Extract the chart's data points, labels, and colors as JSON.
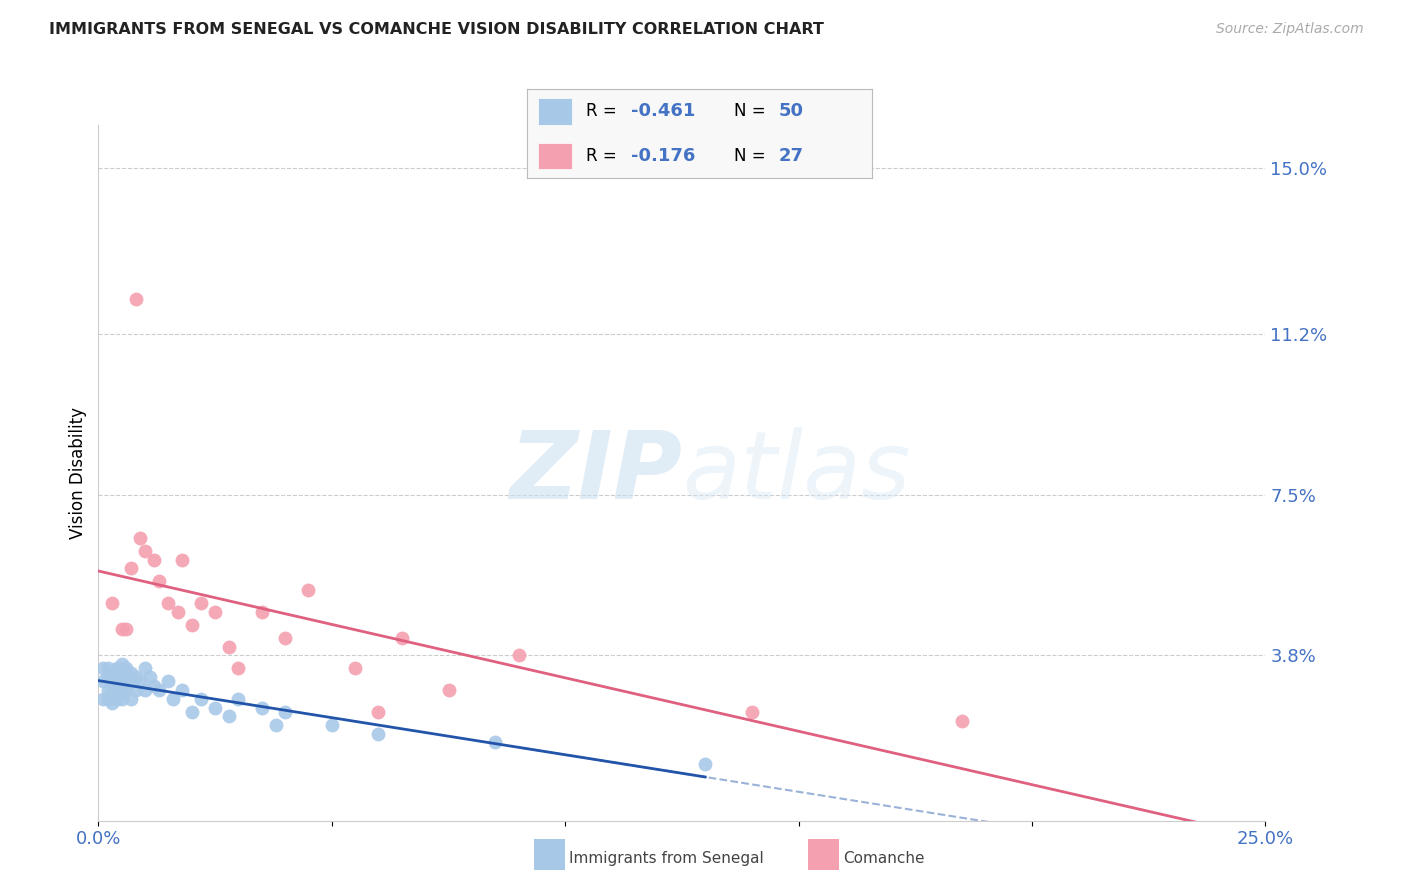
{
  "title": "IMMIGRANTS FROM SENEGAL VS COMANCHE VISION DISABILITY CORRELATION CHART",
  "source": "Source: ZipAtlas.com",
  "xlabel_color": "#4472c4",
  "ylabel": "Vision Disability",
  "xlim": [
    0.0,
    0.25
  ],
  "ylim": [
    0.0,
    0.16
  ],
  "ytick_labels_right": [
    "15.0%",
    "11.2%",
    "7.5%",
    "3.8%"
  ],
  "ytick_vals_right": [
    0.15,
    0.112,
    0.075,
    0.038
  ],
  "blue_color": "#a8c8e8",
  "blue_line_color": "#2255aa",
  "pink_color": "#f4a0b0",
  "pink_line_color": "#e06080",
  "watermark_zip": "ZIP",
  "watermark_atlas": "atlas",
  "grid_color": "#cccccc",
  "background_color": "#ffffff",
  "legend_text_color": "#4472c4",
  "blue_scatter_x": [
    0.001,
    0.001,
    0.001,
    0.002,
    0.002,
    0.002,
    0.002,
    0.003,
    0.003,
    0.003,
    0.003,
    0.003,
    0.004,
    0.004,
    0.004,
    0.004,
    0.005,
    0.005,
    0.005,
    0.005,
    0.005,
    0.006,
    0.006,
    0.006,
    0.007,
    0.007,
    0.007,
    0.008,
    0.008,
    0.009,
    0.01,
    0.01,
    0.011,
    0.012,
    0.013,
    0.015,
    0.016,
    0.018,
    0.02,
    0.022,
    0.025,
    0.028,
    0.03,
    0.035,
    0.038,
    0.04,
    0.05,
    0.06,
    0.085,
    0.13
  ],
  "blue_scatter_y": [
    0.032,
    0.028,
    0.035,
    0.03,
    0.033,
    0.028,
    0.035,
    0.031,
    0.03,
    0.027,
    0.034,
    0.032,
    0.035,
    0.033,
    0.03,
    0.028,
    0.036,
    0.034,
    0.032,
    0.03,
    0.028,
    0.035,
    0.033,
    0.03,
    0.034,
    0.032,
    0.028,
    0.033,
    0.03,
    0.032,
    0.035,
    0.03,
    0.033,
    0.031,
    0.03,
    0.032,
    0.028,
    0.03,
    0.025,
    0.028,
    0.026,
    0.024,
    0.028,
    0.026,
    0.022,
    0.025,
    0.022,
    0.02,
    0.018,
    0.013
  ],
  "pink_scatter_x": [
    0.003,
    0.005,
    0.006,
    0.007,
    0.008,
    0.009,
    0.01,
    0.012,
    0.013,
    0.015,
    0.017,
    0.018,
    0.02,
    0.022,
    0.025,
    0.028,
    0.03,
    0.035,
    0.04,
    0.045,
    0.055,
    0.06,
    0.065,
    0.075,
    0.09,
    0.14,
    0.185
  ],
  "pink_scatter_y": [
    0.05,
    0.044,
    0.044,
    0.058,
    0.12,
    0.065,
    0.062,
    0.06,
    0.055,
    0.05,
    0.048,
    0.06,
    0.045,
    0.05,
    0.048,
    0.04,
    0.035,
    0.048,
    0.042,
    0.053,
    0.035,
    0.025,
    0.042,
    0.03,
    0.038,
    0.025,
    0.023
  ]
}
